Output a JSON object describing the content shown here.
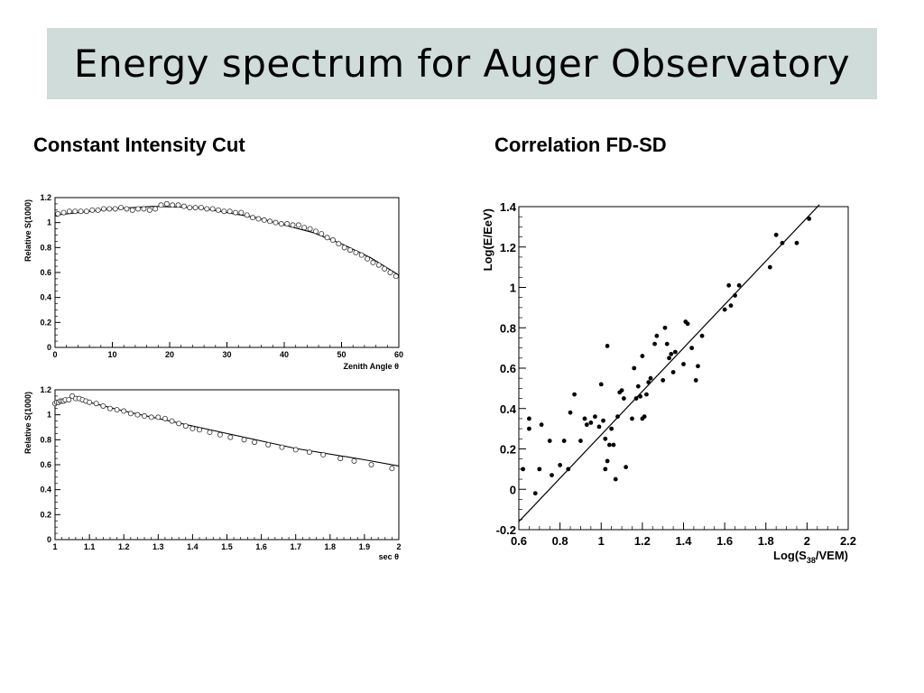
{
  "slide": {
    "title": "Energy spectrum for Auger Observatory",
    "left_heading": "Constant Intensity Cut",
    "right_heading": "Correlation FD-SD"
  },
  "chart_data": [
    {
      "id": "zenith",
      "type": "scatter",
      "xlabel": "Zenith Angle θ",
      "ylabel": "Relative S(1000)",
      "xlim": [
        0,
        60
      ],
      "ylim": [
        0,
        1.2
      ],
      "xticks": [
        0,
        10,
        20,
        30,
        40,
        50,
        60
      ],
      "xtick_labels": [
        "0",
        "10",
        "20",
        "30",
        "40",
        "50",
        "60"
      ],
      "yticks": [
        0,
        0.2,
        0.4,
        0.6,
        0.8,
        1,
        1.2
      ],
      "ytick_labels": [
        "0",
        "0.2",
        "0.4",
        "0.6",
        "0.8",
        "1",
        "1.2"
      ],
      "grid": false,
      "points": [
        [
          0.5,
          1.07
        ],
        [
          1.5,
          1.08
        ],
        [
          2.5,
          1.09
        ],
        [
          3.5,
          1.09
        ],
        [
          4.5,
          1.09
        ],
        [
          5.5,
          1.09
        ],
        [
          6.5,
          1.1
        ],
        [
          7.5,
          1.1
        ],
        [
          8.5,
          1.11
        ],
        [
          9.5,
          1.11
        ],
        [
          10.5,
          1.11
        ],
        [
          11.5,
          1.12
        ],
        [
          12.5,
          1.11
        ],
        [
          13.5,
          1.1
        ],
        [
          14.5,
          1.11
        ],
        [
          15.5,
          1.11
        ],
        [
          16.5,
          1.1
        ],
        [
          17.5,
          1.11
        ],
        [
          18.5,
          1.14
        ],
        [
          19.5,
          1.15
        ],
        [
          20.5,
          1.14
        ],
        [
          21.5,
          1.14
        ],
        [
          22.5,
          1.13
        ],
        [
          23.5,
          1.12
        ],
        [
          24.5,
          1.12
        ],
        [
          25.5,
          1.12
        ],
        [
          26.5,
          1.11
        ],
        [
          27.5,
          1.11
        ],
        [
          28.5,
          1.1
        ],
        [
          29.5,
          1.09
        ],
        [
          30.5,
          1.09
        ],
        [
          31.5,
          1.08
        ],
        [
          32.5,
          1.08
        ],
        [
          33.5,
          1.06
        ],
        [
          34.5,
          1.04
        ],
        [
          35.5,
          1.03
        ],
        [
          36.5,
          1.02
        ],
        [
          37.5,
          1.01
        ],
        [
          38.5,
          1.0
        ],
        [
          39.5,
          0.99
        ],
        [
          40.5,
          0.99
        ],
        [
          41.5,
          0.98
        ],
        [
          42.5,
          0.98
        ],
        [
          43.5,
          0.96
        ],
        [
          44.5,
          0.95
        ],
        [
          45.5,
          0.93
        ],
        [
          46.5,
          0.91
        ],
        [
          47.5,
          0.88
        ],
        [
          48.5,
          0.86
        ],
        [
          49.5,
          0.83
        ],
        [
          50.5,
          0.8
        ],
        [
          51.5,
          0.78
        ],
        [
          52.5,
          0.76
        ],
        [
          53.5,
          0.74
        ],
        [
          54.5,
          0.71
        ],
        [
          55.5,
          0.68
        ],
        [
          56.5,
          0.66
        ],
        [
          57.5,
          0.63
        ],
        [
          58.5,
          0.6
        ],
        [
          59.5,
          0.57
        ]
      ],
      "fit": [
        [
          0,
          1.06
        ],
        [
          10,
          1.11
        ],
        [
          17,
          1.13
        ],
        [
          25,
          1.12
        ],
        [
          35,
          1.04
        ],
        [
          45,
          0.92
        ],
        [
          50,
          0.83
        ],
        [
          55,
          0.72
        ],
        [
          60,
          0.58
        ]
      ]
    },
    {
      "id": "sec",
      "type": "scatter",
      "xlabel": "sec θ",
      "ylabel": "Relative S(1000)",
      "xlim": [
        1,
        2
      ],
      "ylim": [
        0,
        1.2
      ],
      "xticks": [
        1,
        1.1,
        1.2,
        1.3,
        1.4,
        1.5,
        1.6,
        1.7,
        1.8,
        1.9,
        2
      ],
      "xtick_labels": [
        "1",
        "1.1",
        "1.2",
        "1.3",
        "1.4",
        "1.5",
        "1.6",
        "1.7",
        "1.8",
        "1.9",
        "2"
      ],
      "yticks": [
        0,
        0.2,
        0.4,
        0.6,
        0.8,
        1,
        1.2
      ],
      "ytick_labels": [
        "0",
        "0.2",
        "0.4",
        "0.6",
        "0.8",
        "1",
        "1.2"
      ],
      "grid": false,
      "points": [
        [
          1.0,
          1.09
        ],
        [
          1.005,
          1.1
        ],
        [
          1.01,
          1.1
        ],
        [
          1.015,
          1.11
        ],
        [
          1.02,
          1.11
        ],
        [
          1.025,
          1.11
        ],
        [
          1.03,
          1.12
        ],
        [
          1.04,
          1.12
        ],
        [
          1.05,
          1.15
        ],
        [
          1.06,
          1.13
        ],
        [
          1.07,
          1.13
        ],
        [
          1.08,
          1.12
        ],
        [
          1.09,
          1.11
        ],
        [
          1.1,
          1.1
        ],
        [
          1.12,
          1.09
        ],
        [
          1.14,
          1.07
        ],
        [
          1.16,
          1.05
        ],
        [
          1.18,
          1.04
        ],
        [
          1.2,
          1.03
        ],
        [
          1.22,
          1.01
        ],
        [
          1.24,
          1.0
        ],
        [
          1.26,
          0.99
        ],
        [
          1.28,
          0.98
        ],
        [
          1.3,
          0.98
        ],
        [
          1.32,
          0.97
        ],
        [
          1.34,
          0.95
        ],
        [
          1.36,
          0.93
        ],
        [
          1.38,
          0.91
        ],
        [
          1.4,
          0.89
        ],
        [
          1.42,
          0.88
        ],
        [
          1.45,
          0.86
        ],
        [
          1.48,
          0.84
        ],
        [
          1.51,
          0.82
        ],
        [
          1.55,
          0.8
        ],
        [
          1.58,
          0.78
        ],
        [
          1.62,
          0.76
        ],
        [
          1.66,
          0.74
        ],
        [
          1.7,
          0.72
        ],
        [
          1.74,
          0.7
        ],
        [
          1.78,
          0.68
        ],
        [
          1.83,
          0.65
        ],
        [
          1.87,
          0.63
        ],
        [
          1.92,
          0.6
        ],
        [
          1.98,
          0.57
        ]
      ],
      "fit": [
        [
          1.0,
          1.09
        ],
        [
          1.05,
          1.14
        ],
        [
          1.1,
          1.1
        ],
        [
          1.2,
          1.03
        ],
        [
          1.3,
          0.97
        ],
        [
          1.5,
          0.85
        ],
        [
          1.7,
          0.73
        ],
        [
          1.9,
          0.64
        ],
        [
          2.0,
          0.59
        ]
      ]
    },
    {
      "id": "correlation",
      "type": "scatter",
      "xlabel": "Log(S38/VEM)",
      "xlabel_parts": [
        "Log(S",
        "38",
        "/VEM)"
      ],
      "ylabel": "Log(E/EeV)",
      "xlim": [
        0.6,
        2.2
      ],
      "ylim": [
        -0.2,
        1.4
      ],
      "xticks": [
        0.6,
        0.8,
        1,
        1.2,
        1.4,
        1.6,
        1.8,
        2,
        2.2
      ],
      "xtick_labels": [
        "0.6",
        "0.8",
        "1",
        "1.2",
        "1.4",
        "1.6",
        "1.8",
        "2",
        "2.2"
      ],
      "yticks": [
        -0.2,
        0,
        0.2,
        0.4,
        0.6,
        0.8,
        1,
        1.2,
        1.4
      ],
      "ytick_labels": [
        "-0.2",
        "0",
        "0.2",
        "0.4",
        "0.6",
        "0.8",
        "1",
        "1.2",
        "1.4"
      ],
      "grid": false,
      "points": [
        [
          0.62,
          0.1
        ],
        [
          0.65,
          0.35
        ],
        [
          0.65,
          0.3
        ],
        [
          0.68,
          -0.02
        ],
        [
          0.7,
          0.1
        ],
        [
          0.71,
          0.32
        ],
        [
          0.75,
          0.24
        ],
        [
          0.76,
          0.07
        ],
        [
          0.8,
          0.12
        ],
        [
          0.82,
          0.24
        ],
        [
          0.84,
          0.1
        ],
        [
          0.85,
          0.38
        ],
        [
          0.87,
          0.47
        ],
        [
          0.9,
          0.24
        ],
        [
          0.92,
          0.35
        ],
        [
          0.93,
          0.32
        ],
        [
          0.95,
          0.33
        ],
        [
          0.97,
          0.36
        ],
        [
          0.99,
          0.31
        ],
        [
          1.0,
          0.52
        ],
        [
          1.01,
          0.34
        ],
        [
          1.02,
          0.25
        ],
        [
          1.02,
          0.1
        ],
        [
          1.03,
          0.14
        ],
        [
          1.03,
          0.71
        ],
        [
          1.04,
          0.22
        ],
        [
          1.05,
          0.3
        ],
        [
          1.06,
          0.22
        ],
        [
          1.07,
          0.05
        ],
        [
          1.08,
          0.36
        ],
        [
          1.09,
          0.48
        ],
        [
          1.1,
          0.49
        ],
        [
          1.11,
          0.45
        ],
        [
          1.12,
          0.11
        ],
        [
          1.15,
          0.35
        ],
        [
          1.16,
          0.6
        ],
        [
          1.17,
          0.45
        ],
        [
          1.18,
          0.51
        ],
        [
          1.19,
          0.46
        ],
        [
          1.2,
          0.35
        ],
        [
          1.2,
          0.66
        ],
        [
          1.21,
          0.36
        ],
        [
          1.22,
          0.47
        ],
        [
          1.23,
          0.53
        ],
        [
          1.24,
          0.55
        ],
        [
          1.26,
          0.72
        ],
        [
          1.27,
          0.76
        ],
        [
          1.3,
          0.54
        ],
        [
          1.31,
          0.8
        ],
        [
          1.32,
          0.72
        ],
        [
          1.33,
          0.65
        ],
        [
          1.34,
          0.67
        ],
        [
          1.35,
          0.58
        ],
        [
          1.36,
          0.68
        ],
        [
          1.4,
          0.62
        ],
        [
          1.41,
          0.83
        ],
        [
          1.42,
          0.82
        ],
        [
          1.44,
          0.7
        ],
        [
          1.46,
          0.54
        ],
        [
          1.47,
          0.61
        ],
        [
          1.49,
          0.76
        ],
        [
          1.6,
          0.89
        ],
        [
          1.62,
          1.01
        ],
        [
          1.63,
          0.91
        ],
        [
          1.65,
          0.96
        ],
        [
          1.67,
          1.01
        ],
        [
          1.82,
          1.1
        ],
        [
          1.85,
          1.26
        ],
        [
          1.88,
          1.22
        ],
        [
          1.95,
          1.22
        ],
        [
          2.01,
          1.34
        ]
      ],
      "fit": [
        [
          0.6,
          -0.16
        ],
        [
          2.06,
          1.41
        ]
      ]
    }
  ]
}
